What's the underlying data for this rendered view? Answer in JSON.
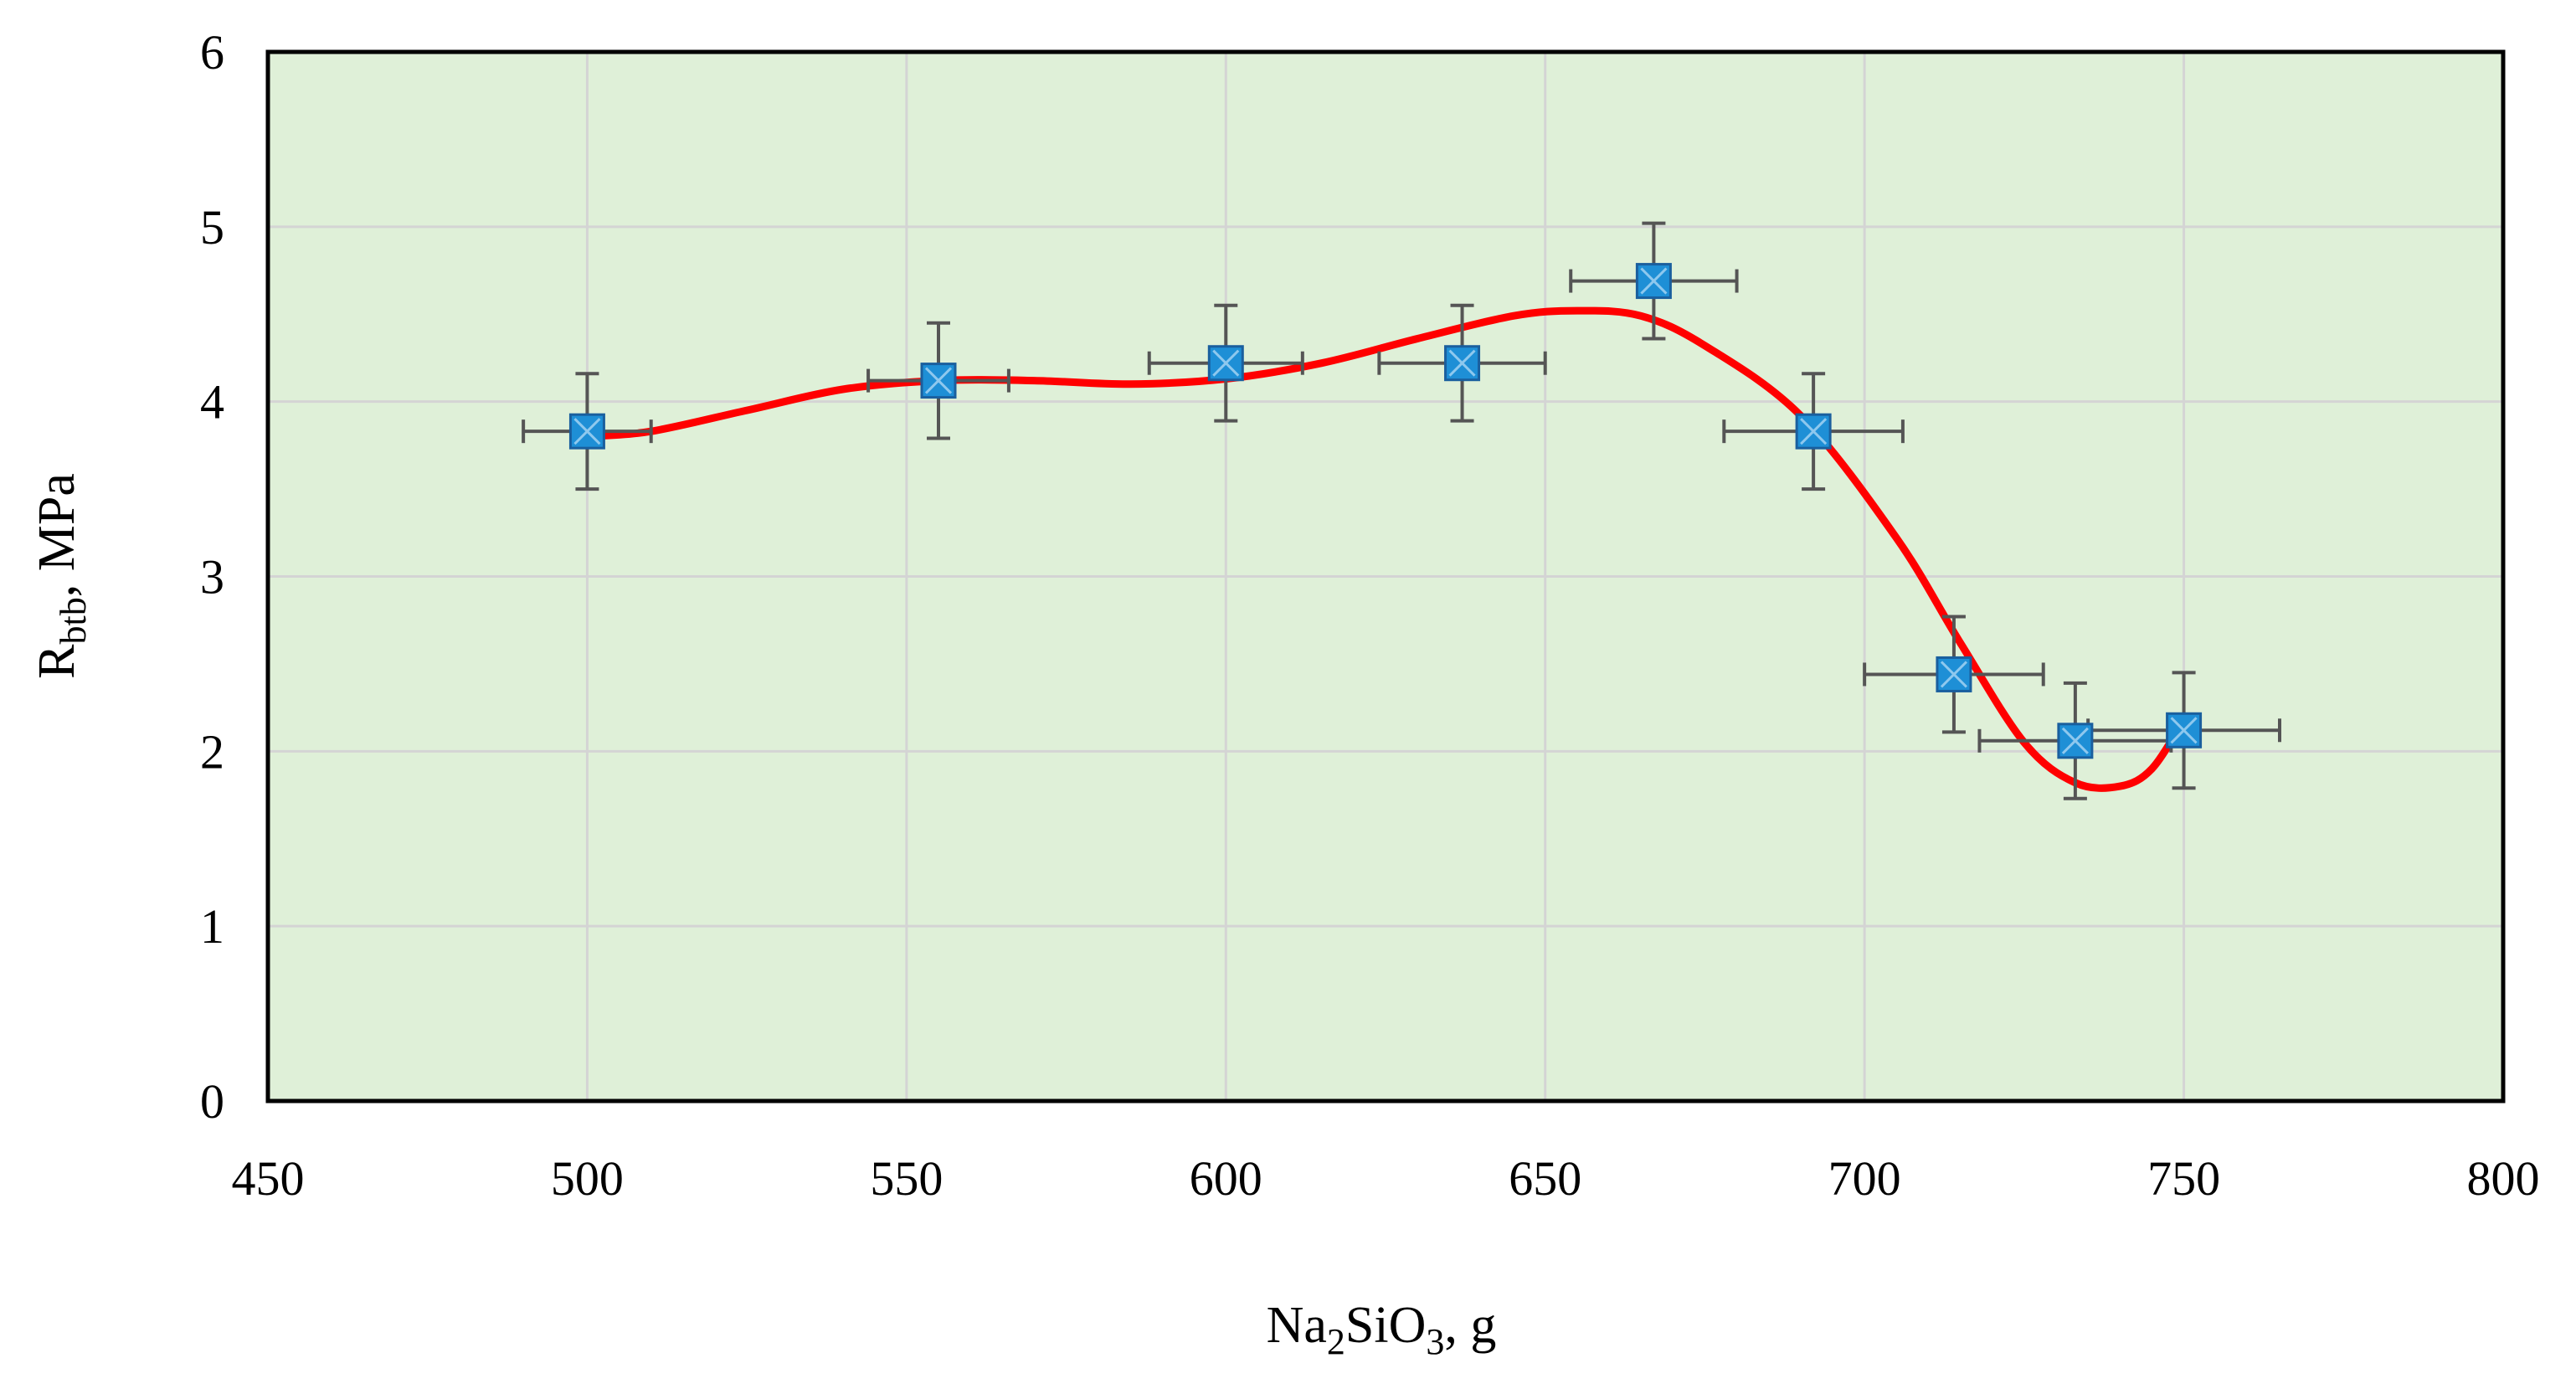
{
  "chart_data": {
    "type": "scatter",
    "title": "",
    "xlabel": "Na2SiO3, g",
    "xlabel_parts": {
      "a": "Na",
      "sub1": "2",
      "b": "SiO",
      "sub2": "3",
      "c": ", g"
    },
    "ylabel": "Rbtb, MPa",
    "ylabel_parts": {
      "a": "R",
      "sub": "btb",
      "b": ", MPa"
    },
    "xlim": [
      450,
      800
    ],
    "ylim": [
      0,
      6
    ],
    "x_ticks": [
      "450",
      "500",
      "550",
      "600",
      "650",
      "700",
      "750",
      "800"
    ],
    "y_ticks": [
      "0",
      "1",
      "2",
      "3",
      "4",
      "5",
      "6"
    ],
    "grid": true,
    "legend": "none",
    "colors": {
      "plot_bg": "#dff0d8",
      "grid": "#d4d4d4",
      "marker": "#1e8fd6",
      "marker_edge": "#1a5f9e",
      "marker_cross": "#8ec8ee",
      "error_bar": "#555555",
      "fit_line": "#ff0000",
      "frame": "#000000"
    },
    "series": [
      {
        "type": "scatter",
        "points": [
          {
            "x": 500,
            "y": 3.83,
            "x_err": 10,
            "y_err": 0.33
          },
          {
            "x": 555,
            "y": 4.12,
            "x_err": 11,
            "y_err": 0.33
          },
          {
            "x": 600,
            "y": 4.22,
            "x_err": 12,
            "y_err": 0.33
          },
          {
            "x": 637,
            "y": 4.22,
            "x_err": 13,
            "y_err": 0.33
          },
          {
            "x": 667,
            "y": 4.69,
            "x_err": 13,
            "y_err": 0.33
          },
          {
            "x": 692,
            "y": 3.83,
            "x_err": 14,
            "y_err": 0.33
          },
          {
            "x": 714,
            "y": 2.44,
            "x_err": 14,
            "y_err": 0.33
          },
          {
            "x": 733,
            "y": 2.06,
            "x_err": 15,
            "y_err": 0.33
          },
          {
            "x": 750,
            "y": 2.12,
            "x_err": 15,
            "y_err": 0.33
          }
        ]
      },
      {
        "type": "line",
        "smooth": true,
        "points": [
          [
            500,
            3.8
          ],
          [
            510,
            3.83
          ],
          [
            525,
            3.95
          ],
          [
            540,
            4.07
          ],
          [
            555,
            4.12
          ],
          [
            570,
            4.12
          ],
          [
            585,
            4.1
          ],
          [
            600,
            4.13
          ],
          [
            615,
            4.22
          ],
          [
            630,
            4.36
          ],
          [
            645,
            4.49
          ],
          [
            655,
            4.52
          ],
          [
            665,
            4.49
          ],
          [
            675,
            4.32
          ],
          [
            690,
            3.92
          ],
          [
            705,
            3.22
          ],
          [
            715,
            2.62
          ],
          [
            725,
            2.05
          ],
          [
            733,
            1.82
          ],
          [
            740,
            1.8
          ],
          [
            745,
            1.9
          ],
          [
            750,
            2.18
          ]
        ]
      }
    ]
  }
}
